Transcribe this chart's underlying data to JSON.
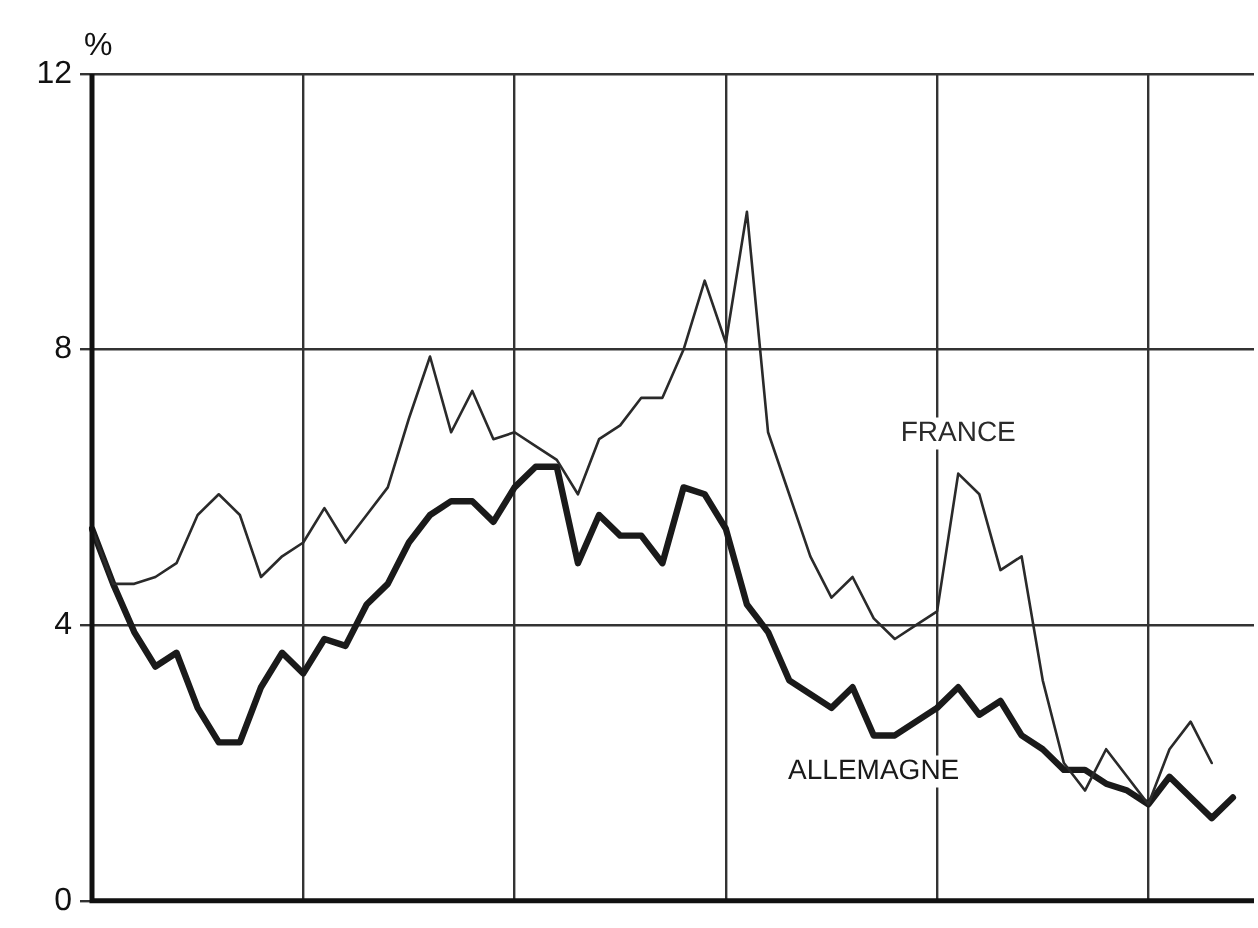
{
  "chart_data": {
    "type": "line",
    "ylabel": "%",
    "categories": [
      null,
      null,
      null,
      null,
      null,
      null,
      null,
      null,
      null,
      null,
      null,
      null,
      null,
      null,
      null,
      null,
      null,
      null,
      null,
      null,
      null,
      null,
      null,
      null,
      null,
      null,
      null,
      null,
      null,
      null,
      null,
      null,
      null,
      null,
      null,
      null,
      null,
      null,
      null,
      null,
      null,
      null,
      null,
      null,
      null,
      null,
      null,
      null,
      null,
      null,
      null,
      null,
      null,
      null,
      null,
      null
    ],
    "ylim": [
      0,
      12
    ],
    "yticks": [
      0,
      4,
      8,
      12
    ],
    "grid": true,
    "tick_labels": "y",
    "legend": false,
    "marker": "none",
    "series": [
      {
        "name": "FRANCE",
        "color": "#2a2a2a",
        "values": [
          5.4,
          4.6,
          4.6,
          4.7,
          4.9,
          5.6,
          5.9,
          5.6,
          4.7,
          5.0,
          5.2,
          5.7,
          5.2,
          5.6,
          6.0,
          7.0,
          7.9,
          6.8,
          7.4,
          6.7,
          6.8,
          6.6,
          6.4,
          5.9,
          6.7,
          6.9,
          7.3,
          7.3,
          8.0,
          9.0,
          8.1,
          10.0,
          6.8,
          5.9,
          5.0,
          4.4,
          4.7,
          4.1,
          3.8,
          4.0,
          4.2,
          6.2,
          5.9,
          4.8,
          5.0,
          3.2,
          2.0,
          1.6,
          2.2,
          1.8,
          1.4,
          2.2,
          2.6,
          2.0,
          null,
          null
        ]
      },
      {
        "name": "ALLEMAGNE",
        "color": "#1a1a1a",
        "values": [
          5.4,
          4.6,
          3.9,
          3.4,
          3.6,
          2.8,
          2.3,
          2.3,
          3.1,
          3.6,
          3.3,
          3.8,
          3.7,
          4.3,
          4.6,
          5.2,
          5.6,
          5.8,
          5.8,
          5.5,
          6.0,
          6.3,
          6.3,
          4.9,
          5.6,
          5.3,
          5.3,
          4.9,
          6.0,
          5.9,
          5.4,
          4.3,
          3.9,
          3.2,
          3.0,
          2.8,
          3.1,
          2.4,
          2.4,
          2.6,
          2.8,
          3.1,
          2.7,
          2.9,
          2.4,
          2.2,
          1.9,
          1.9,
          1.7,
          1.6,
          1.4,
          1.8,
          1.5,
          1.2,
          1.5,
          null
        ]
      }
    ]
  }
}
